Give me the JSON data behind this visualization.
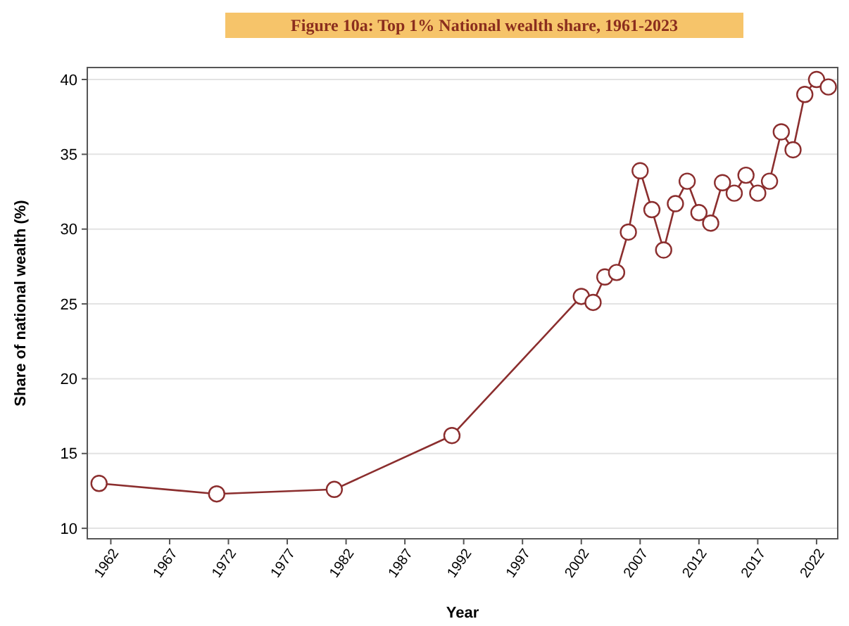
{
  "chart_data": {
    "type": "line",
    "title": "Figure 10a: Top 1% National wealth share, 1961-2023",
    "xlabel": "Year",
    "ylabel": "Share of national wealth (%)",
    "x": [
      1961,
      1971,
      1981,
      1991,
      2002,
      2003,
      2004,
      2005,
      2006,
      2007,
      2008,
      2009,
      2010,
      2011,
      2012,
      2013,
      2014,
      2015,
      2016,
      2017,
      2018,
      2019,
      2020,
      2021,
      2022,
      2023
    ],
    "series": [
      {
        "color": "#8b2e2e",
        "values": [
          13.0,
          12.3,
          12.6,
          16.2,
          25.5,
          25.1,
          26.8,
          27.1,
          29.8,
          33.9,
          31.3,
          28.6,
          31.7,
          33.2,
          31.1,
          30.4,
          33.1,
          32.4,
          33.6,
          32.4,
          33.2,
          36.5,
          35.3,
          39.0,
          40.0,
          39.5
        ]
      }
    ],
    "xlim": [
      1960,
      2023.8
    ],
    "xticks": [
      1962,
      1967,
      1972,
      1977,
      1982,
      1987,
      1992,
      1997,
      2002,
      2007,
      2012,
      2017,
      2022
    ],
    "ylim": [
      9.3,
      40.8
    ],
    "yticks": [
      10,
      15,
      20,
      25,
      30,
      35,
      40
    ],
    "grid": "y",
    "marker": "circle",
    "line_style": "solid"
  }
}
